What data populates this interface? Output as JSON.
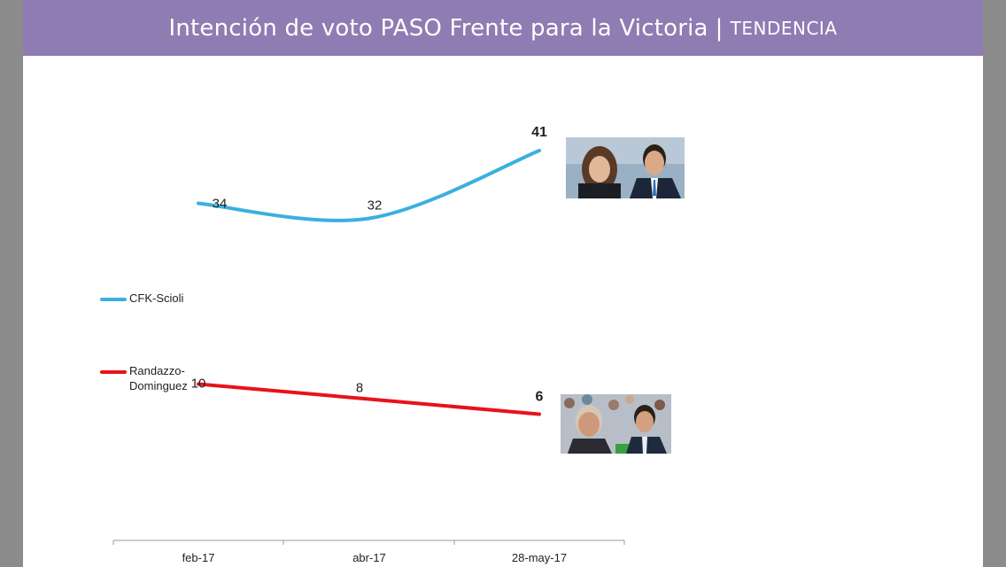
{
  "header": {
    "title": "Intención de voto PASO Frente para la Victoria",
    "separator": "|",
    "subtitle": "TENDENCIA"
  },
  "colors": {
    "header_bg": "#8e7cb2",
    "series_cfk": "#3ab0de",
    "series_randazzo": "#e8121a"
  },
  "chart_data": {
    "type": "line",
    "categories": [
      "feb-17",
      "abr-17",
      "28-may-17"
    ],
    "series": [
      {
        "name": "CFK-Scioli",
        "values": [
          34,
          32,
          41
        ],
        "labels": [
          "34",
          "32",
          "41"
        ],
        "color": "#3ab0de"
      },
      {
        "name": "Randazzo-\nDominguez",
        "values": [
          10,
          8,
          6
        ],
        "labels": [
          "10",
          "8",
          "6"
        ],
        "color": "#e8121a"
      }
    ],
    "legend_position": "left",
    "grid": false
  },
  "photos": [
    {
      "icon": "cfk-scioli-photo"
    },
    {
      "icon": "randazzo-dominguez-photo"
    }
  ]
}
